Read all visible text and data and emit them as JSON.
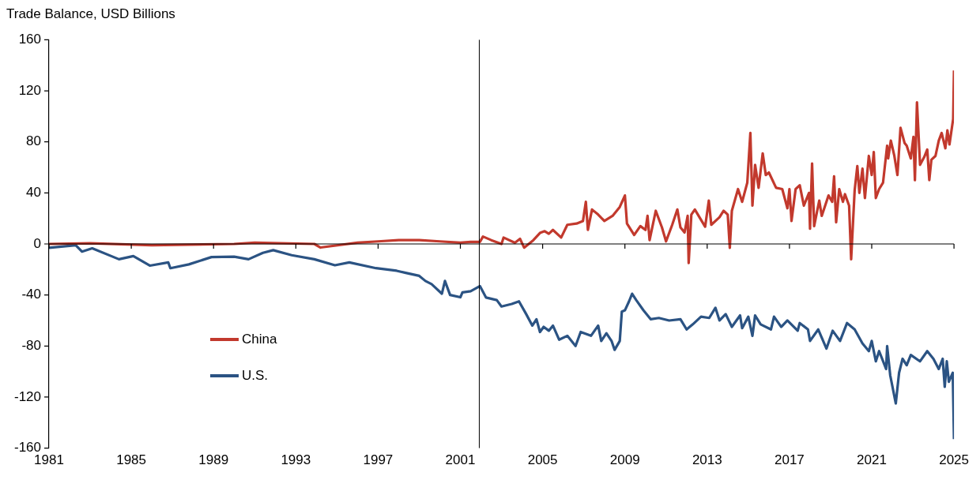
{
  "chart_data": {
    "type": "line",
    "title": "Trade Balance, USD Billions",
    "xlim": [
      1981,
      2025
    ],
    "xticks": [
      1981,
      1985,
      1989,
      1993,
      1997,
      2001,
      2005,
      2009,
      2013,
      2017,
      2021,
      2025
    ],
    "ylim": [
      -160,
      160
    ],
    "yticks": [
      -160,
      -120,
      -80,
      -40,
      0,
      40,
      80,
      120,
      160
    ],
    "grid": false,
    "legend": "left",
    "marker": "none",
    "line_style": "solid",
    "ref_lines": [
      {
        "axis": "x",
        "value": 2001.92,
        "color": "#000000"
      },
      {
        "axis": "y",
        "value": 0,
        "color": "#000000"
      }
    ],
    "series": [
      {
        "name": "China",
        "color": "#c2392d",
        "x": [
          1981,
          1983,
          1986,
          1990,
          1991,
          1993.9,
          1994.2,
          1996,
          1997,
          1998,
          1999,
          2000,
          2001,
          2001.5,
          2001.95,
          2002.1,
          2002.5,
          2003,
          2003.1,
          2003.65,
          2003.9,
          2004.1,
          2004.55,
          2004.87,
          2005.1,
          2005.3,
          2005.5,
          2005.9,
          2006.2,
          2006.65,
          2006.96,
          2007.1,
          2007.2,
          2007.4,
          2007.7,
          2008,
          2008.4,
          2008.75,
          2009,
          2009.1,
          2009.45,
          2009.75,
          2010,
          2010.1,
          2010.2,
          2010.5,
          2010.8,
          2011,
          2011.3,
          2011.55,
          2011.7,
          2011.9,
          2012.05,
          2012.1,
          2012.23,
          2012.4,
          2012.9,
          2013.08,
          2013.2,
          2013.6,
          2013.8,
          2014,
          2014.1,
          2014.2,
          2014.5,
          2014.7,
          2014.95,
          2015.1,
          2015.2,
          2015.33,
          2015.5,
          2015.7,
          2015.85,
          2016,
          2016.35,
          2016.65,
          2016.9,
          2017,
          2017.1,
          2017.3,
          2017.5,
          2017.7,
          2017.95,
          2018,
          2018.1,
          2018.2,
          2018.45,
          2018.57,
          2018.9,
          2019.08,
          2019.17,
          2019.27,
          2019.42,
          2019.6,
          2019.7,
          2019.9,
          2020,
          2020.17,
          2020.3,
          2020.4,
          2020.55,
          2020.67,
          2020.86,
          2021,
          2021.1,
          2021.2,
          2021.36,
          2021.55,
          2021.75,
          2021.8,
          2021.93,
          2022.1,
          2022.25,
          2022.4,
          2022.6,
          2022.7,
          2022.9,
          2023.03,
          2023.1,
          2023.2,
          2023.35,
          2023.55,
          2023.7,
          2023.8,
          2023.9,
          2024.1,
          2024.26,
          2024.4,
          2024.58,
          2024.68,
          2024.78,
          2024.96,
          2025
        ],
        "values": [
          0,
          0.5,
          -1,
          0,
          1,
          0,
          -2.8,
          1,
          2,
          3,
          3,
          2,
          1,
          1.6,
          1.6,
          5.8,
          3,
          0,
          5,
          0.9,
          4,
          -2.9,
          3,
          8.6,
          10,
          8,
          11,
          5,
          15,
          16,
          18,
          33,
          11,
          27,
          23,
          18,
          22,
          29,
          38,
          16,
          7,
          14,
          11,
          22,
          3,
          26,
          13,
          2,
          15,
          27,
          13,
          9,
          22,
          -15,
          23,
          27,
          13.5,
          34,
          15,
          21,
          26,
          23,
          -3,
          26,
          43,
          33,
          48,
          87,
          30,
          62,
          44,
          71,
          54,
          56,
          44,
          43,
          28,
          43,
          18,
          43,
          46,
          30,
          40,
          12,
          63,
          14,
          34,
          22,
          38,
          33,
          53,
          17,
          43,
          33,
          39,
          30,
          -12,
          42,
          61,
          40,
          59,
          36,
          69,
          54,
          72,
          36,
          43,
          48,
          77,
          67,
          81,
          69,
          54,
          91,
          79,
          77,
          67,
          84,
          50,
          111,
          62,
          68,
          74,
          50,
          66,
          69,
          81,
          87,
          75,
          89,
          78,
          98,
          136
        ]
      },
      {
        "name": "U.S.",
        "color": "#2b5383",
        "x": [
          1981,
          1982.3,
          1982.6,
          1983.1,
          1984.4,
          1985.1,
          1985.9,
          1986.8,
          1986.9,
          1987.8,
          1988.9,
          1990,
          1990.7,
          1991.4,
          1991.9,
          1992.8,
          1993.9,
          1994.9,
          1995.6,
          1996.9,
          1997.9,
          1998.3,
          1999,
          1999.3,
          1999.6,
          2000.1,
          2000.25,
          2000.5,
          2001,
          2001.1,
          2001.5,
          2001.95,
          2002.25,
          2002.77,
          2003,
          2003.5,
          2003.85,
          2004.2,
          2004.5,
          2004.7,
          2004.87,
          2005.05,
          2005.3,
          2005.5,
          2005.8,
          2006.2,
          2006.6,
          2006.85,
          2007.35,
          2007.7,
          2007.85,
          2008.1,
          2008.35,
          2008.5,
          2008.75,
          2008.85,
          2009,
          2009.2,
          2009.35,
          2009.55,
          2009.9,
          2010.25,
          2010.65,
          2011.15,
          2011.7,
          2012,
          2012.3,
          2012.7,
          2013.1,
          2013.4,
          2013.6,
          2013.9,
          2014.2,
          2014.6,
          2014.7,
          2015,
          2015.2,
          2015.33,
          2015.6,
          2016.1,
          2016.25,
          2016.6,
          2016.9,
          2017.4,
          2017.5,
          2017.9,
          2018,
          2018.4,
          2018.8,
          2019.1,
          2019.46,
          2019.8,
          2020.17,
          2020.55,
          2020.86,
          2021,
          2021.2,
          2021.36,
          2021.7,
          2021.75,
          2021.9,
          2022.17,
          2022.33,
          2022.5,
          2022.7,
          2022.9,
          2023.35,
          2023.7,
          2024,
          2024.26,
          2024.45,
          2024.55,
          2024.65,
          2024.75,
          2024.94,
          2025
        ],
        "values": [
          -3,
          -1,
          -6,
          -3.4,
          -12,
          -9.5,
          -17,
          -14.5,
          -19,
          -16,
          -10.3,
          -10,
          -12,
          -7,
          -4.9,
          -8.8,
          -12,
          -16.7,
          -14.5,
          -19,
          -21,
          -22.5,
          -25,
          -29,
          -31.5,
          -39,
          -29,
          -40,
          -41.8,
          -38,
          -37,
          -33,
          -42,
          -44,
          -49,
          -47,
          -45,
          -55,
          -64,
          -59,
          -69,
          -65,
          -68,
          -64,
          -75,
          -72,
          -80,
          -69,
          -72,
          -64,
          -76,
          -70,
          -76,
          -83,
          -76,
          -53,
          -52,
          -45,
          -39,
          -44,
          -52,
          -59,
          -58,
          -60,
          -59,
          -67,
          -63,
          -57,
          -58,
          -50,
          -60,
          -55,
          -65,
          -56,
          -66,
          -57,
          -72,
          -56,
          -63,
          -67,
          -57,
          -65,
          -60,
          -68,
          -62,
          -67,
          -76,
          -67,
          -82,
          -68,
          -76,
          -62,
          -67,
          -78,
          -84,
          -76,
          -92,
          -84,
          -98,
          -80,
          -103,
          -125,
          -101,
          -90,
          -95,
          -87,
          -92,
          -84,
          -90,
          -98,
          -90,
          -112,
          -92,
          -108,
          -101,
          -153
        ]
      }
    ]
  }
}
